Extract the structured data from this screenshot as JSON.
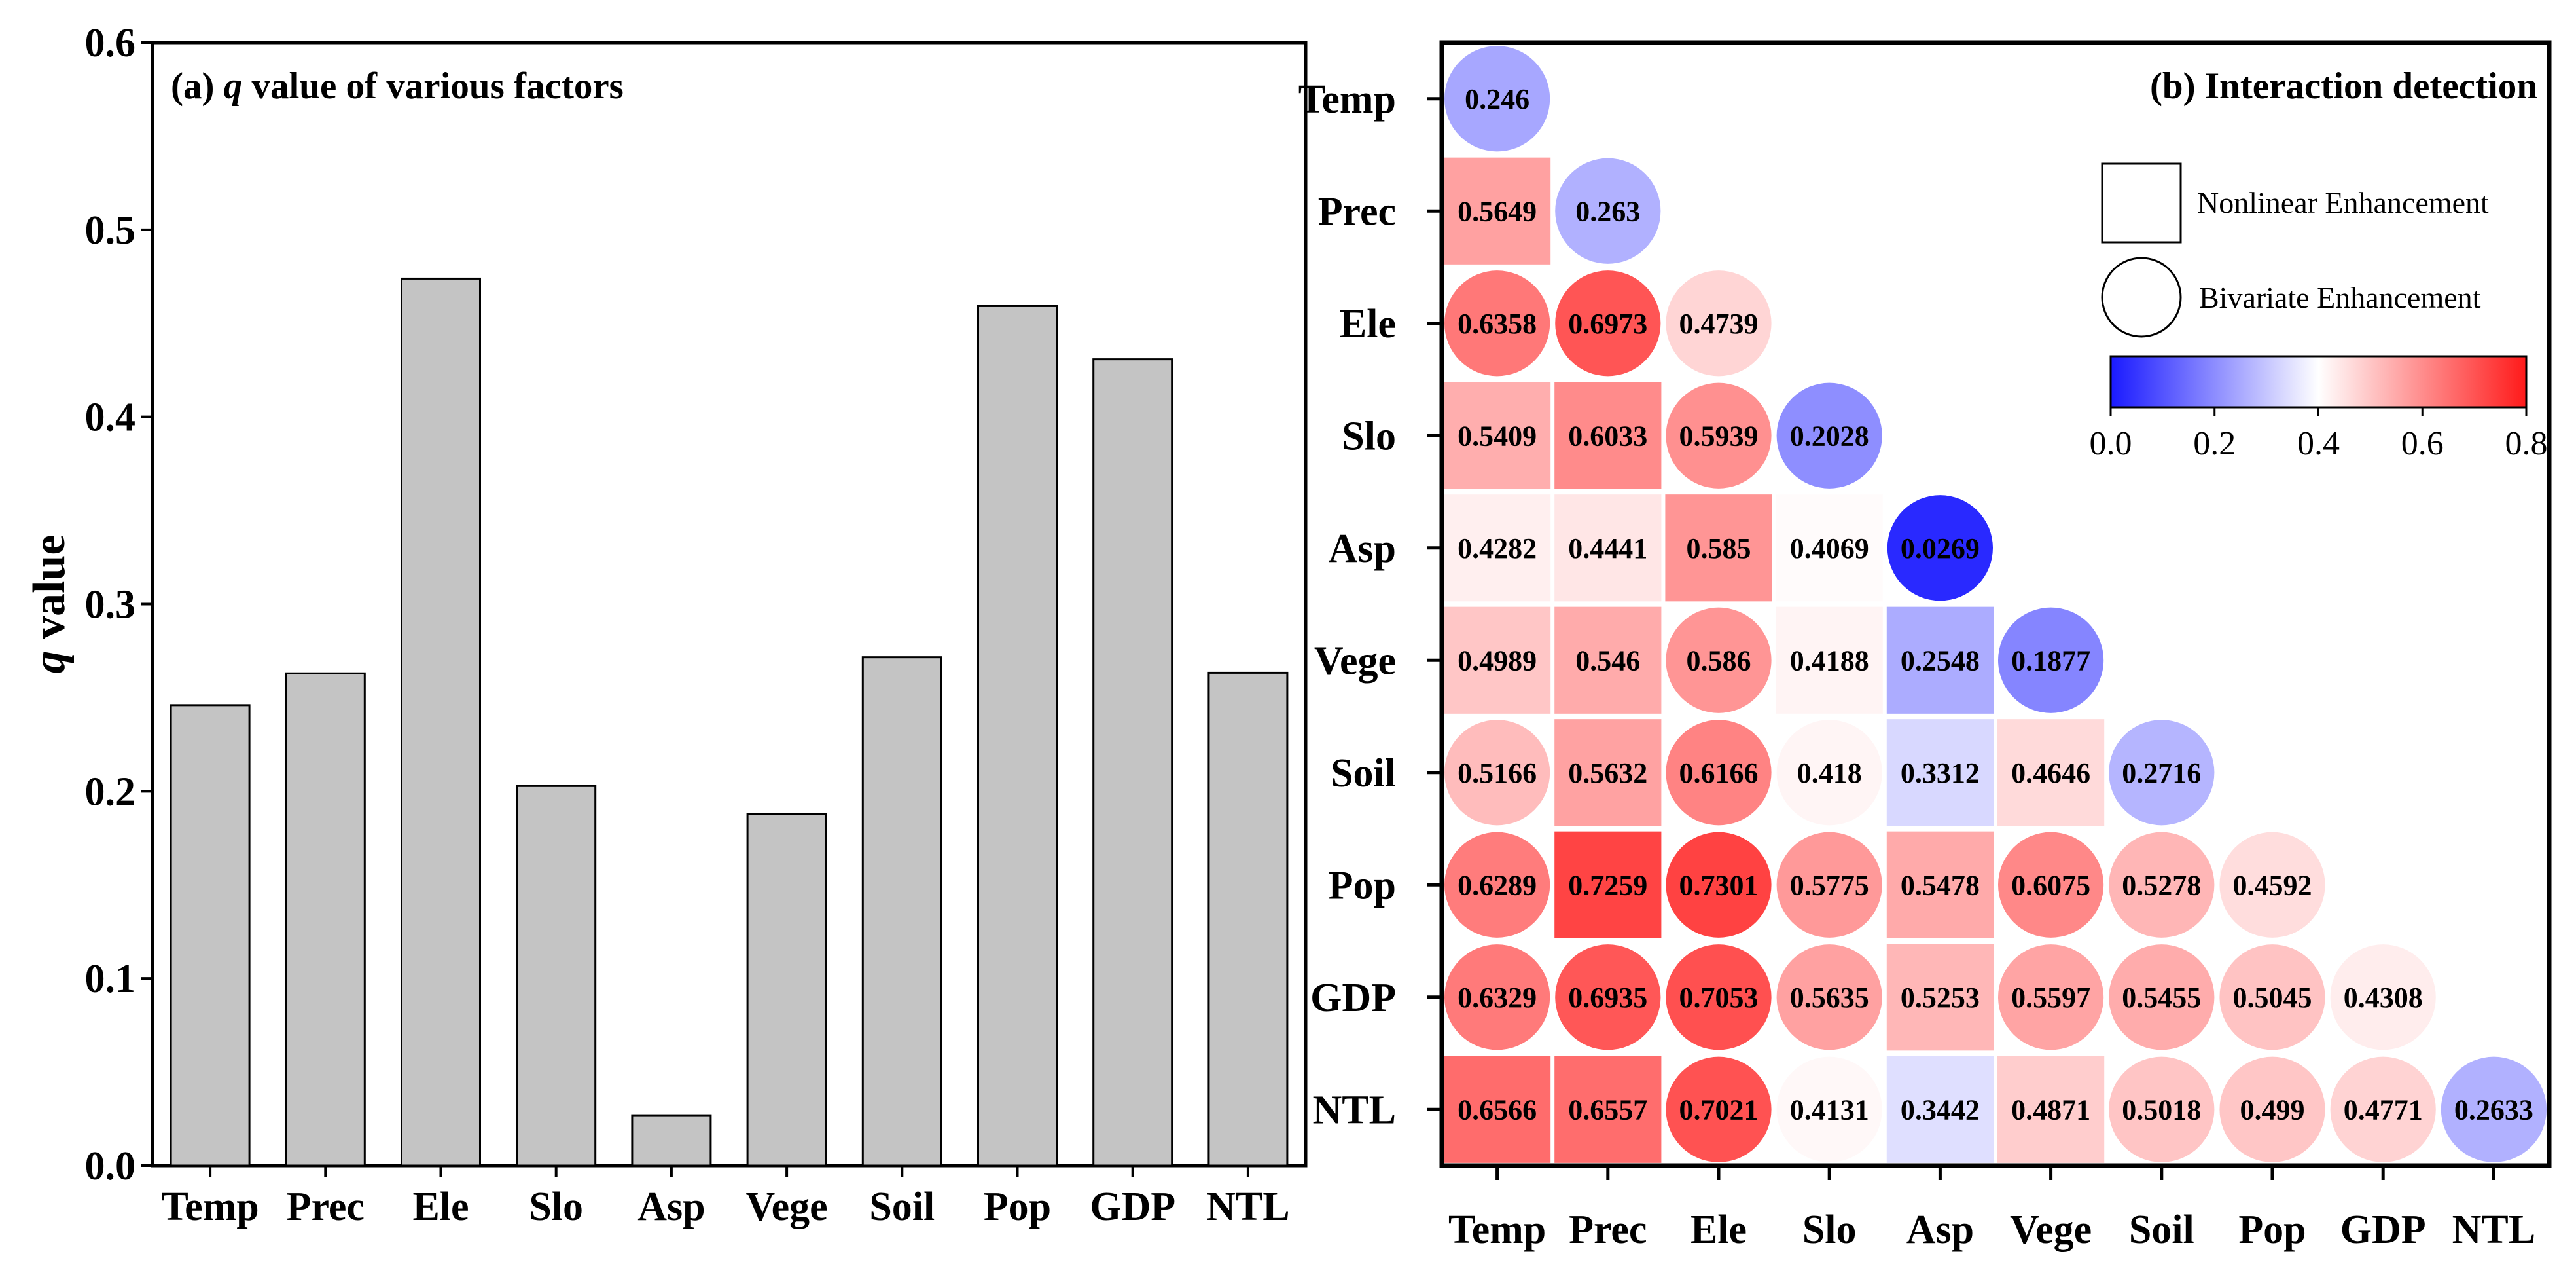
{
  "chart_data": [
    {
      "type": "bar",
      "title_prefix": "(a)",
      "title_italic": "q",
      "title_suffix": "value of various factors",
      "ylabel_italic": "q",
      "ylabel_suffix": "value",
      "xlabel": "",
      "categories": [
        "Temp",
        "Prec",
        "Ele",
        "Slo",
        "Asp",
        "Vege",
        "Soil",
        "Pop",
        "GDP",
        "NTL"
      ],
      "values": [
        0.246,
        0.263,
        0.4739,
        0.2028,
        0.0269,
        0.1877,
        0.2716,
        0.4592,
        0.4308,
        0.2633
      ],
      "ylim": [
        0,
        0.6
      ],
      "yticks": [
        "0.0",
        "0.1",
        "0.2",
        "0.3",
        "0.4",
        "0.5",
        "0.6"
      ],
      "bar_color": "#c4c4c4",
      "grid": false
    },
    {
      "type": "heatmap",
      "title": "(b) Interaction detection",
      "factors": [
        "Temp",
        "Prec",
        "Ele",
        "Slo",
        "Asp",
        "Vege",
        "Soil",
        "Pop",
        "GDP",
        "NTL"
      ],
      "cells": [
        [
          {
            "v": "0.246",
            "s": "circle"
          }
        ],
        [
          {
            "v": "0.5649",
            "s": "square"
          },
          {
            "v": "0.263",
            "s": "circle"
          }
        ],
        [
          {
            "v": "0.6358",
            "s": "circle"
          },
          {
            "v": "0.6973",
            "s": "circle"
          },
          {
            "v": "0.4739",
            "s": "circle"
          }
        ],
        [
          {
            "v": "0.5409",
            "s": "square"
          },
          {
            "v": "0.6033",
            "s": "square"
          },
          {
            "v": "0.5939",
            "s": "circle"
          },
          {
            "v": "0.2028",
            "s": "circle"
          }
        ],
        [
          {
            "v": "0.4282",
            "s": "square"
          },
          {
            "v": "0.4441",
            "s": "square"
          },
          {
            "v": "0.585",
            "s": "square"
          },
          {
            "v": "0.4069",
            "s": "square"
          },
          {
            "v": "0.0269",
            "s": "circle"
          }
        ],
        [
          {
            "v": "0.4989",
            "s": "square"
          },
          {
            "v": "0.546",
            "s": "square"
          },
          {
            "v": "0.586",
            "s": "circle"
          },
          {
            "v": "0.4188",
            "s": "square"
          },
          {
            "v": "0.2548",
            "s": "square"
          },
          {
            "v": "0.1877",
            "s": "circle"
          }
        ],
        [
          {
            "v": "0.5166",
            "s": "circle"
          },
          {
            "v": "0.5632",
            "s": "square"
          },
          {
            "v": "0.6166",
            "s": "circle"
          },
          {
            "v": "0.418",
            "s": "circle"
          },
          {
            "v": "0.3312",
            "s": "square"
          },
          {
            "v": "0.4646",
            "s": "square"
          },
          {
            "v": "0.2716",
            "s": "circle"
          }
        ],
        [
          {
            "v": "0.6289",
            "s": "circle"
          },
          {
            "v": "0.7259",
            "s": "square"
          },
          {
            "v": "0.7301",
            "s": "circle"
          },
          {
            "v": "0.5775",
            "s": "circle"
          },
          {
            "v": "0.5478",
            "s": "square"
          },
          {
            "v": "0.6075",
            "s": "circle"
          },
          {
            "v": "0.5278",
            "s": "circle"
          },
          {
            "v": "0.4592",
            "s": "circle"
          }
        ],
        [
          {
            "v": "0.6329",
            "s": "circle"
          },
          {
            "v": "0.6935",
            "s": "circle"
          },
          {
            "v": "0.7053",
            "s": "circle"
          },
          {
            "v": "0.5635",
            "s": "circle"
          },
          {
            "v": "0.5253",
            "s": "square"
          },
          {
            "v": "0.5597",
            "s": "circle"
          },
          {
            "v": "0.5455",
            "s": "circle"
          },
          {
            "v": "0.5045",
            "s": "circle"
          },
          {
            "v": "0.4308",
            "s": "circle"
          }
        ],
        [
          {
            "v": "0.6566",
            "s": "square"
          },
          {
            "v": "0.6557",
            "s": "square"
          },
          {
            "v": "0.7021",
            "s": "circle"
          },
          {
            "v": "0.4131",
            "s": "circle"
          },
          {
            "v": "0.3442",
            "s": "square"
          },
          {
            "v": "0.4871",
            "s": "square"
          },
          {
            "v": "0.5018",
            "s": "circle"
          },
          {
            "v": "0.499",
            "s": "circle"
          },
          {
            "v": "0.4771",
            "s": "circle"
          },
          {
            "v": "0.2633",
            "s": "circle"
          }
        ]
      ],
      "legend": {
        "square_label": "Nonlinear Enhancement",
        "circle_label": "Bivariate Enhancement",
        "placement": "top-right"
      },
      "colorbar": {
        "range": [
          0,
          0.8
        ],
        "ticks": [
          "0.0",
          "0.2",
          "0.4",
          "0.6",
          "0.8"
        ],
        "colors": [
          "#1a1aff",
          "#ffffff",
          "#ff1a1a"
        ],
        "center": 0.4
      }
    }
  ]
}
